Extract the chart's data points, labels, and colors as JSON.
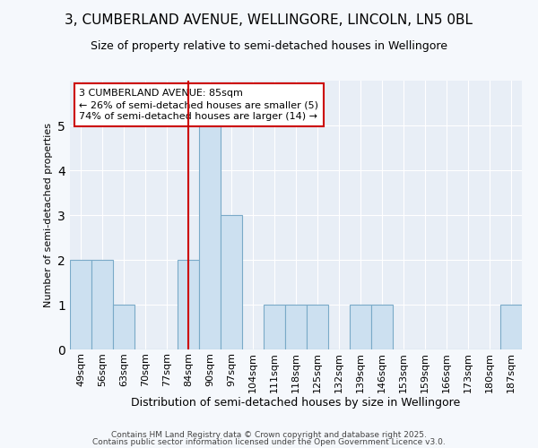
{
  "title1": "3, CUMBERLAND AVENUE, WELLINGORE, LINCOLN, LN5 0BL",
  "title2": "Size of property relative to semi-detached houses in Wellingore",
  "xlabel": "Distribution of semi-detached houses by size in Wellingore",
  "ylabel": "Number of semi-detached properties",
  "categories": [
    "49sqm",
    "56sqm",
    "63sqm",
    "70sqm",
    "77sqm",
    "84sqm",
    "90sqm",
    "97sqm",
    "104sqm",
    "111sqm",
    "118sqm",
    "125sqm",
    "132sqm",
    "139sqm",
    "146sqm",
    "153sqm",
    "159sqm",
    "166sqm",
    "173sqm",
    "180sqm",
    "187sqm"
  ],
  "values": [
    2,
    2,
    1,
    0,
    0,
    2,
    5,
    3,
    0,
    1,
    1,
    1,
    0,
    1,
    1,
    0,
    0,
    0,
    0,
    0,
    1
  ],
  "bar_color": "#cce0f0",
  "bar_edge_color": "#7aaac8",
  "vline_x_index": 5,
  "vline_color": "#cc0000",
  "annotation_line1": "3 CUMBERLAND AVENUE: 85sqm",
  "annotation_line2": "← 26% of semi-detached houses are smaller (5)",
  "annotation_line3": "74% of semi-detached houses are larger (14) →",
  "annotation_box_color": "#ffffff",
  "annotation_box_edge_color": "#cc0000",
  "ylim": [
    0,
    6
  ],
  "yticks": [
    0,
    1,
    2,
    3,
    4,
    5,
    6
  ],
  "footer_line1": "Contains HM Land Registry data © Crown copyright and database right 2025.",
  "footer_line2": "Contains public sector information licensed under the Open Government Licence v3.0.",
  "background_color": "#f5f8fc",
  "plot_bg_color": "#e8eef6",
  "grid_color": "#ffffff",
  "title1_fontsize": 11,
  "title2_fontsize": 9,
  "ylabel_fontsize": 8,
  "xlabel_fontsize": 9,
  "tick_fontsize": 8,
  "footer_fontsize": 6.5,
  "ann_fontsize": 8
}
